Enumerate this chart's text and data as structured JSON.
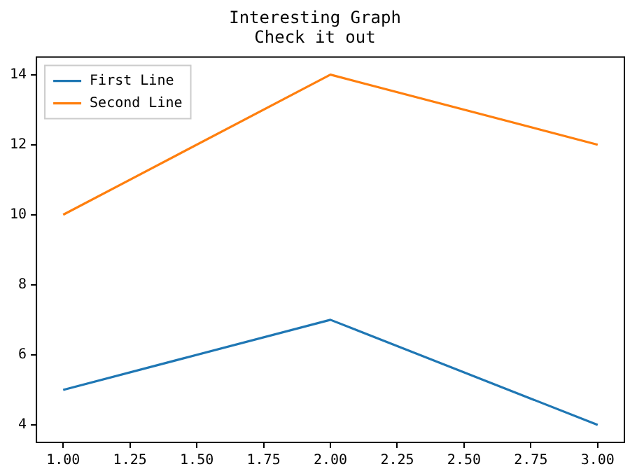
{
  "chart_data": {
    "type": "line",
    "title": "Interesting Graph",
    "subtitle": "Check it out",
    "x": [
      1,
      2,
      3
    ],
    "series": [
      {
        "name": "First Line",
        "color": "#1f77b4",
        "values": [
          5,
          7,
          4
        ]
      },
      {
        "name": "Second Line",
        "color": "#ff7f0e",
        "values": [
          10,
          14,
          12
        ]
      }
    ],
    "xlim": [
      0.9,
      3.1
    ],
    "xticks": [
      {
        "value": 1,
        "label": "1.00"
      },
      {
        "value": 1.25,
        "label": "1.25"
      },
      {
        "value": 1.5,
        "label": "1.50"
      },
      {
        "value": 1.75,
        "label": "1.75"
      },
      {
        "value": 2,
        "label": "2.00"
      },
      {
        "value": 2.25,
        "label": "2.25"
      },
      {
        "value": 2.5,
        "label": "2.50"
      },
      {
        "value": 2.75,
        "label": "2.75"
      },
      {
        "value": 3,
        "label": "3.00"
      }
    ],
    "ylim": [
      3.5,
      14.5
    ],
    "yticks": [
      4,
      6,
      8,
      10,
      12,
      14
    ],
    "grid": false,
    "legend": "top left",
    "marker": "none",
    "line_style": "solid"
  }
}
